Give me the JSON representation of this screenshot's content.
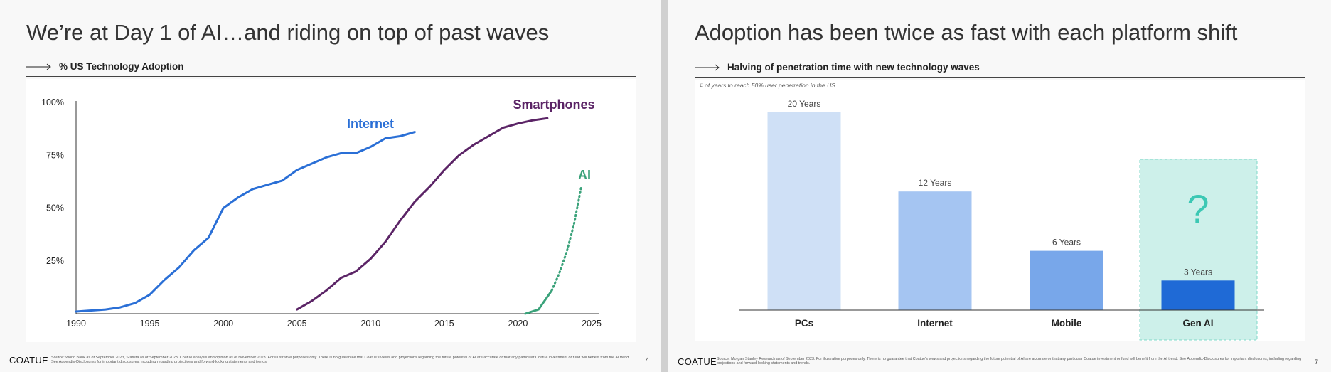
{
  "slides": [
    {
      "title": "We’re at Day 1 of AI…and riding on top of past waves",
      "subtitle": "% US Technology Adoption",
      "footer_logo": "COATUE",
      "footer_text": "Source: World Bank as of September 2023, Statista as of September 2023, Coatue analysis and opinion as of November 2023. For illustrative purposes only. There is no guarantee that Coatue’s views and projections regarding the future potential of AI are accurate or that any particular Coatue investment or fund will benefit from the AI trend. See Appendix-Disclosures for important disclosures, including regarding projections and forward-looking statements and trends.",
      "page_number": "4"
    },
    {
      "title": "Adoption has been twice as fast with each platform shift",
      "subtitle": "Halving of penetration time with new technology waves",
      "note": "# of years to reach 50% user penetration in the US",
      "footer_logo": "COATUE",
      "footer_text": "Source: Morgan Stanley Research as of September 2023. For illustrative purposes only. There is no guarantee that Coatue’s views and projections regarding the future potential of AI are accurate or that any particular Coatue investment or fund will benefit from the AI trend. See Appendix-Disclosures for important disclosures, including regarding projections and forward-looking statements and trends.",
      "page_number": "7"
    }
  ],
  "colors": {
    "internet": "#2a6fd6",
    "smartphones": "#5b2466",
    "ai": "#3aa27a",
    "bar_pcs": "#cfe0f6",
    "bar_internet": "#a5c5f2",
    "bar_mobile": "#78a7ea",
    "bar_genai": "#1f6ad6",
    "genai_box": "#cdf0ea",
    "question_mark": "#3cc8b4"
  },
  "chart_data": [
    {
      "type": "line",
      "title": "% US Technology Adoption",
      "xlabel": "",
      "ylabel": "",
      "xlim": [
        1990,
        2025
      ],
      "ylim": [
        0,
        100
      ],
      "x_ticks": [
        "1990",
        "1995",
        "2000",
        "2005",
        "2010",
        "2015",
        "2020",
        "2025"
      ],
      "y_ticks": [
        "100%",
        "75%",
        "50%",
        "25%"
      ],
      "grid": false,
      "series": [
        {
          "name": "Internet",
          "x": [
            1990,
            1992,
            1993,
            1994,
            1995,
            1996,
            1997,
            1998,
            1999,
            2000,
            2001,
            2002,
            2003,
            2004,
            2005,
            2006,
            2007,
            2008,
            2009,
            2010,
            2011,
            2012,
            2013
          ],
          "y": [
            1,
            2,
            3,
            5,
            9,
            16,
            22,
            30,
            36,
            50,
            55,
            59,
            61,
            63,
            68,
            71,
            74,
            76,
            76,
            79,
            83,
            84,
            86
          ],
          "style": "solid"
        },
        {
          "name": "Smartphones",
          "x": [
            2005,
            2006,
            2007,
            2008,
            2009,
            2010,
            2011,
            2012,
            2013,
            2014,
            2015,
            2016,
            2017,
            2018,
            2019,
            2020,
            2021,
            2022
          ],
          "y": [
            2,
            6,
            11,
            17,
            20,
            26,
            34,
            44,
            53,
            60,
            68,
            75,
            80,
            84,
            88,
            90,
            91.5,
            92.5
          ],
          "style": "solid"
        },
        {
          "name": "AI",
          "x": [
            2020.5,
            2021.4,
            2022.3
          ],
          "y": [
            0,
            2,
            11
          ],
          "style": "solid"
        },
        {
          "name": "AI",
          "x": [
            2022.3,
            2022.8,
            2023.3,
            2023.8,
            2024.3
          ],
          "y": [
            11,
            19,
            29,
            42,
            60
          ],
          "style": "dotted"
        }
      ]
    },
    {
      "type": "bar",
      "title": "Halving of penetration time with new technology waves",
      "xlabel": "",
      "ylabel": "# of years to reach 50% user penetration in the US",
      "categories": [
        "PCs",
        "Internet",
        "Mobile",
        "Gen AI"
      ],
      "values": [
        20,
        12,
        6,
        3
      ],
      "data_labels": [
        "20 Years",
        "12 Years",
        "6 Years",
        "3 Years"
      ],
      "annotation": "?",
      "ylim": [
        0,
        20
      ]
    }
  ]
}
